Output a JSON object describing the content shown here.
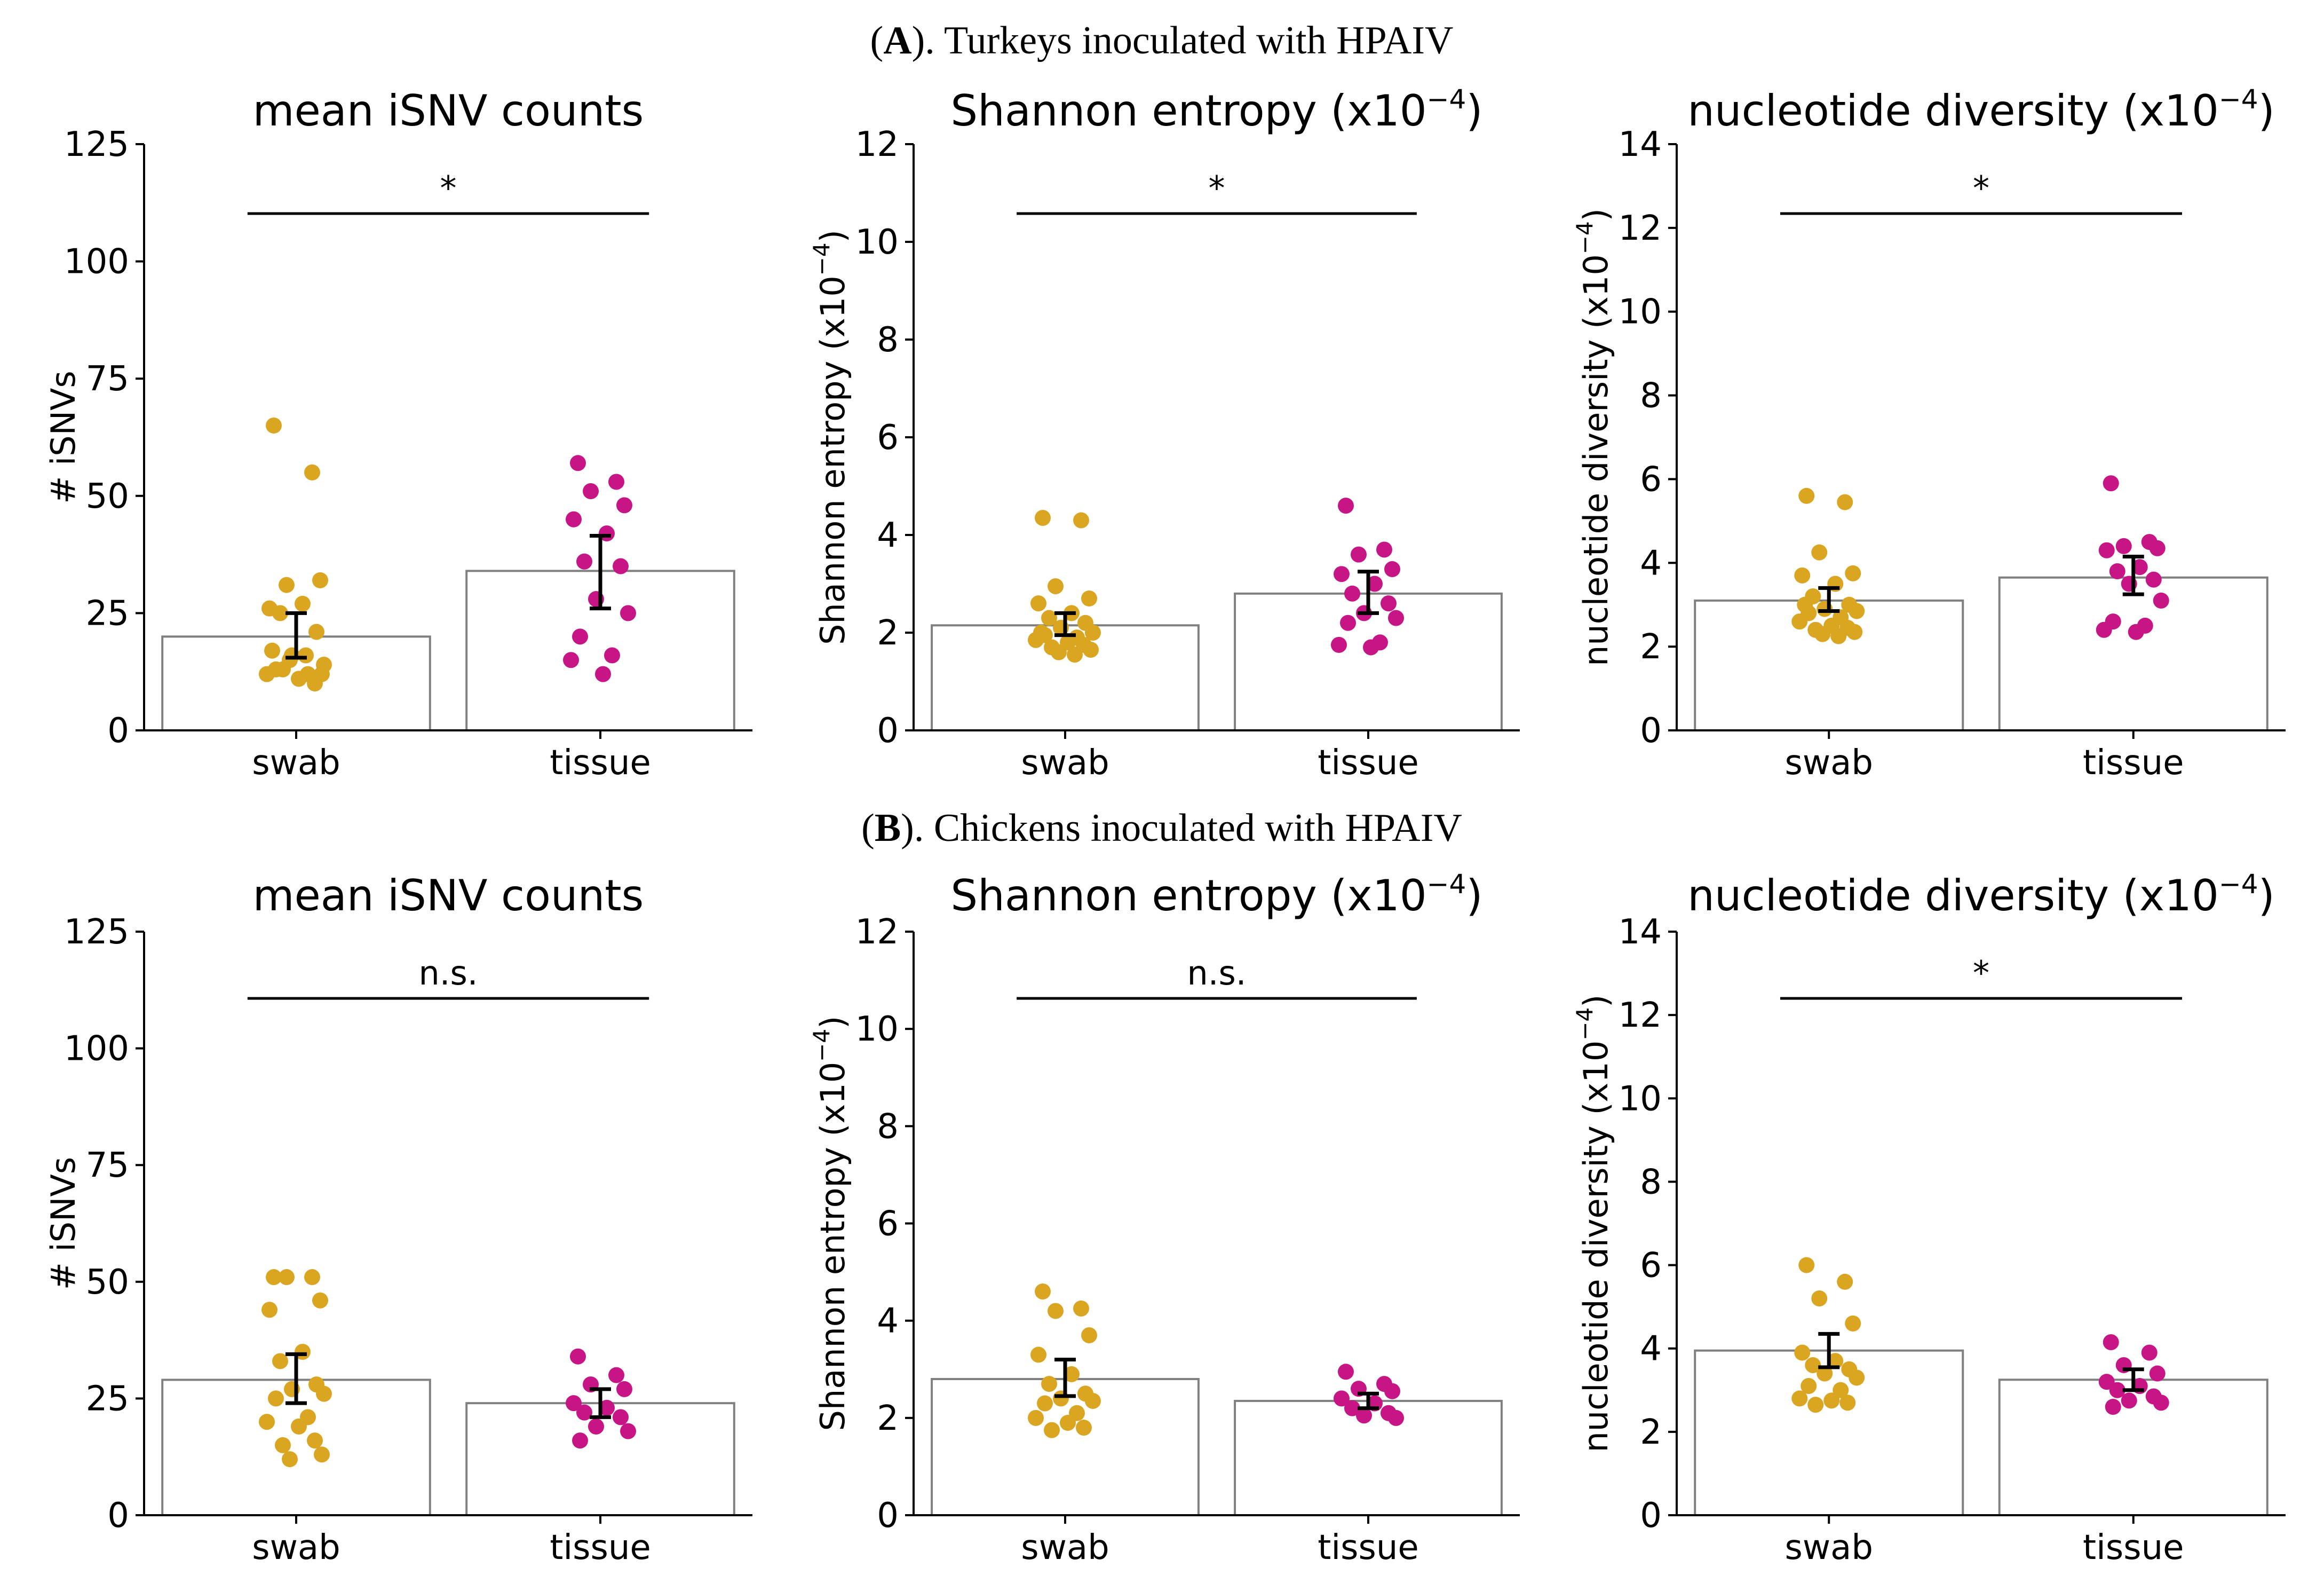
{
  "figure": {
    "sections": [
      {
        "label_letter": "A",
        "label_rest": "). Turkeys inoculated with HPAIV",
        "panels": [
          {
            "title_main": "mean iSNV counts",
            "title_sup": "",
            "title_end": "",
            "ylabel_main": "# iSNVs",
            "ylabel_sup": "",
            "ylabel_end": "",
            "sig": "*",
            "chart_data": {
              "type": "bar",
              "categories": [
                "swab",
                "tissue"
              ],
              "values": [
                20,
                34
              ],
              "error_low": [
                15.5,
                26
              ],
              "error_high": [
                25,
                41.5
              ],
              "ylim": [
                0,
                125
              ],
              "yticks": [
                0,
                25,
                50,
                75,
                100,
                125
              ],
              "points": [
                [
                  65,
                  55,
                  31,
                  32,
                  26,
                  27,
                  25,
                  21,
                  16,
                  14,
                  13,
                  12,
                  12,
                  11,
                  10,
                  13,
                  12,
                  15,
                  16,
                  17
                ],
                [
                  57,
                  53,
                  51,
                  48,
                  45,
                  42,
                  36,
                  35,
                  28,
                  25,
                  20,
                  16,
                  15,
                  12
                ]
              ]
            }
          },
          {
            "title_main": "Shannon entropy (x10",
            "title_sup": "−4",
            "title_end": ")",
            "ylabel_main": "Shannon entropy (x10",
            "ylabel_sup": "−4",
            "ylabel_end": ")",
            "sig": "*",
            "chart_data": {
              "type": "bar",
              "categories": [
                "swab",
                "tissue"
              ],
              "values": [
                2.15,
                2.8
              ],
              "error_low": [
                1.95,
                2.4
              ],
              "error_high": [
                2.4,
                3.25
              ],
              "ylim": [
                0,
                12
              ],
              "yticks": [
                0,
                2,
                4,
                6,
                8,
                10,
                12
              ],
              "points": [
                [
                  4.35,
                  4.3,
                  2.95,
                  2.7,
                  2.6,
                  2.4,
                  2.3,
                  2.2,
                  2.1,
                  2.0,
                  1.95,
                  1.9,
                  1.85,
                  1.8,
                  1.75,
                  1.7,
                  1.65,
                  1.6,
                  1.55,
                  2.0
                ],
                [
                  4.6,
                  3.7,
                  3.6,
                  3.3,
                  3.2,
                  3.0,
                  2.8,
                  2.6,
                  2.4,
                  2.3,
                  2.2,
                  1.8,
                  1.75,
                  1.7
                ]
              ]
            }
          },
          {
            "title_main": "nucleotide diversity (x10",
            "title_sup": "−4",
            "title_end": ")",
            "ylabel_main": "nucleotide diversity (x10",
            "ylabel_sup": "−4",
            "ylabel_end": ")",
            "sig": "*",
            "chart_data": {
              "type": "bar",
              "categories": [
                "swab",
                "tissue"
              ],
              "values": [
                3.1,
                3.65
              ],
              "error_low": [
                2.85,
                3.25
              ],
              "error_high": [
                3.4,
                4.15
              ],
              "ylim": [
                0,
                14
              ],
              "yticks": [
                0,
                2,
                4,
                6,
                8,
                10,
                12,
                14
              ],
              "points": [
                [
                  5.6,
                  5.45,
                  4.25,
                  3.75,
                  3.7,
                  3.5,
                  3.2,
                  3.0,
                  2.9,
                  2.85,
                  2.8,
                  2.7,
                  2.6,
                  2.5,
                  2.45,
                  2.4,
                  2.35,
                  2.3,
                  2.25,
                  3.0
                ],
                [
                  5.9,
                  4.5,
                  4.4,
                  4.35,
                  4.3,
                  3.9,
                  3.8,
                  3.6,
                  3.5,
                  3.1,
                  2.6,
                  2.5,
                  2.4,
                  2.35
                ]
              ]
            }
          }
        ]
      },
      {
        "label_letter": "B",
        "label_rest": "). Chickens inoculated with HPAIV",
        "panels": [
          {
            "title_main": "mean iSNV counts",
            "title_sup": "",
            "title_end": "",
            "ylabel_main": "# iSNVs",
            "ylabel_sup": "",
            "ylabel_end": "",
            "sig": "n.s.",
            "chart_data": {
              "type": "bar",
              "categories": [
                "swab",
                "tissue"
              ],
              "values": [
                29,
                24
              ],
              "error_low": [
                24,
                21
              ],
              "error_high": [
                34.5,
                27
              ],
              "ylim": [
                0,
                125
              ],
              "yticks": [
                0,
                25,
                50,
                75,
                100,
                125
              ],
              "points": [
                [
                  51,
                  51,
                  51,
                  46,
                  44,
                  35,
                  33,
                  28,
                  27,
                  26,
                  25,
                  21,
                  20,
                  19,
                  16,
                  15,
                  13,
                  12
                ],
                [
                  34,
                  30,
                  28,
                  27,
                  24,
                  23,
                  22,
                  21,
                  19,
                  18,
                  16
                ]
              ]
            }
          },
          {
            "title_main": "Shannon entropy (x10",
            "title_sup": "−4",
            "title_end": ")",
            "ylabel_main": "Shannon entropy (x10",
            "ylabel_sup": "−4",
            "ylabel_end": ")",
            "sig": "n.s.",
            "chart_data": {
              "type": "bar",
              "categories": [
                "swab",
                "tissue"
              ],
              "values": [
                2.8,
                2.35
              ],
              "error_low": [
                2.45,
                2.2
              ],
              "error_high": [
                3.2,
                2.5
              ],
              "ylim": [
                0,
                12
              ],
              "yticks": [
                0,
                2,
                4,
                6,
                8,
                10,
                12
              ],
              "points": [
                [
                  4.6,
                  4.25,
                  4.2,
                  3.7,
                  3.3,
                  2.9,
                  2.7,
                  2.5,
                  2.4,
                  2.35,
                  2.3,
                  2.1,
                  2.0,
                  1.9,
                  1.8,
                  1.75
                ],
                [
                  2.95,
                  2.7,
                  2.6,
                  2.55,
                  2.4,
                  2.3,
                  2.2,
                  2.1,
                  2.05,
                  2.0
                ]
              ]
            }
          },
          {
            "title_main": "nucleotide diversity (x10",
            "title_sup": "−4",
            "title_end": ")",
            "ylabel_main": "nucleotide diversity (x10",
            "ylabel_sup": "−4",
            "ylabel_end": ")",
            "sig": "*",
            "chart_data": {
              "type": "bar",
              "categories": [
                "swab",
                "tissue"
              ],
              "values": [
                3.95,
                3.25
              ],
              "error_low": [
                3.55,
                3.0
              ],
              "error_high": [
                4.35,
                3.5
              ],
              "ylim": [
                0,
                14
              ],
              "yticks": [
                0,
                2,
                4,
                6,
                8,
                10,
                12,
                14
              ],
              "points": [
                [
                  6.0,
                  5.6,
                  5.2,
                  4.6,
                  3.9,
                  3.7,
                  3.6,
                  3.5,
                  3.4,
                  3.3,
                  3.1,
                  3.0,
                  2.8,
                  2.75,
                  2.7,
                  2.65
                ],
                [
                  4.15,
                  3.9,
                  3.6,
                  3.4,
                  3.2,
                  3.1,
                  3.0,
                  2.85,
                  2.75,
                  2.7,
                  2.6
                ]
              ]
            }
          }
        ]
      }
    ],
    "colors": {
      "swab_points": "#DAA520",
      "tissue_points": "#C71585",
      "bar_edge": "#808080",
      "bar_fill": "#ffffff",
      "axis": "#000000"
    }
  }
}
